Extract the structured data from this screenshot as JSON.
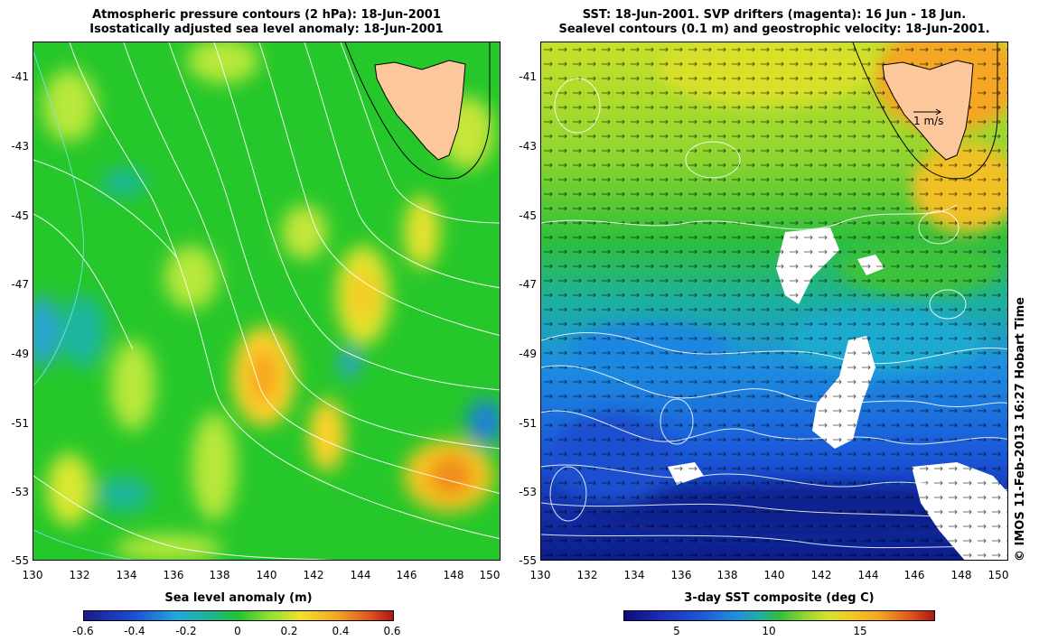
{
  "left_panel": {
    "title_line1": "Atmospheric pressure contours (2 hPa): 18-Jun-2001",
    "title_line2": "Isostatically adjusted sea level anomaly: 18-Jun-2001",
    "y_ticks": [
      "-41",
      "-43",
      "-45",
      "-47",
      "-49",
      "-51",
      "-53",
      "-55"
    ],
    "x_ticks": [
      "130",
      "132",
      "134",
      "136",
      "138",
      "140",
      "142",
      "144",
      "146",
      "148",
      "150"
    ],
    "colorbar": {
      "title": "Sea level anomaly (m)",
      "ticks": [
        "-0.6",
        "-0.4",
        "-0.2",
        "0",
        "0.2",
        "0.4",
        "0.6"
      ]
    }
  },
  "right_panel": {
    "title_line1": "SST: 18-Jun-2001. SVP drifters (magenta): 16 Jun - 18 Jun.",
    "title_line2": "Sealevel contours (0.1 m) and geostrophic velocity: 18-Jun-2001.",
    "y_ticks": [
      "-41",
      "-43",
      "-45",
      "-47",
      "-49",
      "-51",
      "-53",
      "-55"
    ],
    "x_ticks": [
      "130",
      "132",
      "134",
      "136",
      "138",
      "140",
      "142",
      "144",
      "146",
      "148",
      "150"
    ],
    "scale_arrow_label": "1 m/s",
    "colorbar": {
      "title": "3-day SST composite (deg C)",
      "ticks": [
        "5",
        "10",
        "15"
      ]
    }
  },
  "credit": "© IMOS 11-Feb-2013 16:27 Hobart Time",
  "colors": {
    "land": "#fcc79a",
    "sla_background": "#22cc22",
    "sst_warm": "#f5a623",
    "sst_cold": "#1a3fc9",
    "contour": "#ffffff"
  }
}
